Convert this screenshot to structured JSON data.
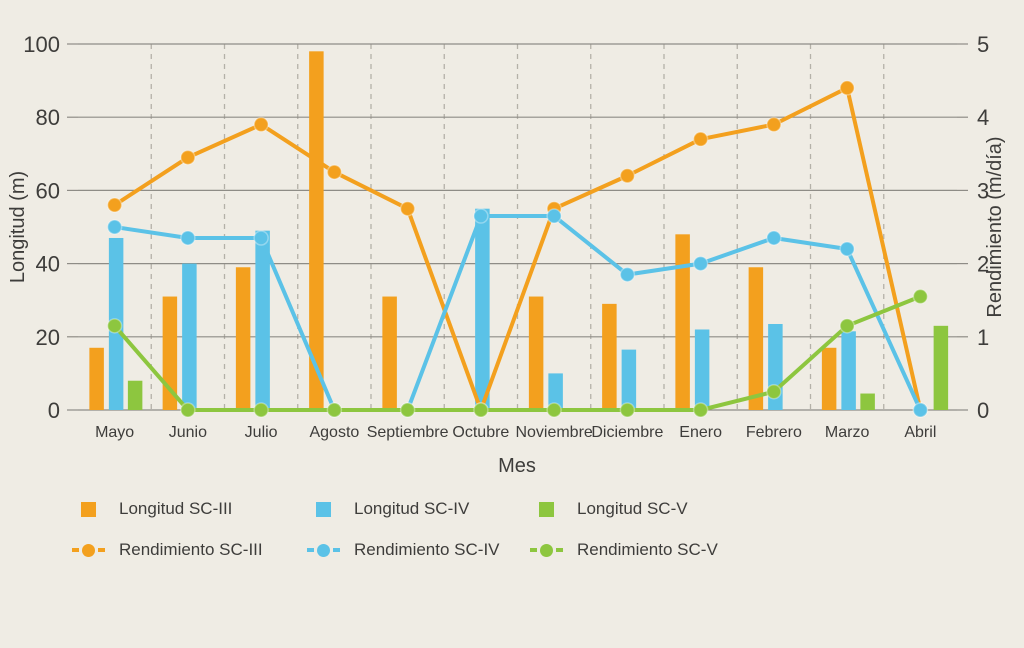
{
  "colors": {
    "background": "#EFECE4",
    "grid": "#8E8C86",
    "separator": "#B4B1A8",
    "text": "#3E3D3B"
  },
  "chart_data": {
    "type": "bar",
    "subtype": "grouped bars with overlaid line series (dual axis combo)",
    "categories": [
      "Mayo",
      "Junio",
      "Julio",
      "Agosto",
      "Septiembre",
      "Octubre",
      "Noviembre",
      "Diciembre",
      "Enero",
      "Febrero",
      "Marzo",
      "Abril"
    ],
    "x_axis": {
      "title": "Mes"
    },
    "left_axis": {
      "title": "Longitud (m)",
      "min": 0,
      "max": 100,
      "ticks": [
        0,
        20,
        40,
        60,
        80,
        100
      ]
    },
    "right_axis": {
      "title": "Rendimiento (m/día)",
      "min": 0,
      "max": 5,
      "ticks": [
        0,
        1,
        2,
        3,
        4,
        5
      ]
    },
    "grid": "horizontal solid gridlines; dashed vertical separators between months",
    "legend_position": "bottom-left, two rows",
    "bar_series": [
      {
        "name": "Longitud SC-III",
        "axis": "left",
        "color": "#F3A01E",
        "values": [
          17,
          31,
          39,
          98,
          31,
          null,
          31,
          29,
          48,
          39,
          17,
          null
        ]
      },
      {
        "name": "Longitud SC-IV",
        "axis": "left",
        "color": "#5BC2E7",
        "values": [
          47,
          40,
          49,
          null,
          null,
          55,
          10,
          16.5,
          22,
          23.5,
          21.5,
          null
        ]
      },
      {
        "name": "Longitud SC-V",
        "axis": "left",
        "color": "#8DC63F",
        "values": [
          8,
          null,
          null,
          null,
          null,
          null,
          null,
          null,
          null,
          null,
          4.5,
          23
        ]
      }
    ],
    "line_series": [
      {
        "name": "Rendimiento SC-III",
        "axis": "right",
        "color": "#F3A01E",
        "values": [
          2.8,
          3.45,
          3.9,
          3.25,
          2.75,
          0,
          2.75,
          3.2,
          3.7,
          3.9,
          4.4,
          0
        ]
      },
      {
        "name": "Rendimiento SC-IV",
        "axis": "right",
        "color": "#5BC2E7",
        "values": [
          2.5,
          2.35,
          2.35,
          0,
          0,
          2.65,
          2.65,
          1.85,
          2.0,
          2.35,
          2.2,
          0
        ]
      },
      {
        "name": "Rendimiento SC-V",
        "axis": "right",
        "color": "#8DC63F",
        "values": [
          1.15,
          0,
          0,
          0,
          0,
          0,
          0,
          0,
          0,
          0.25,
          1.15,
          1.55
        ]
      }
    ]
  }
}
